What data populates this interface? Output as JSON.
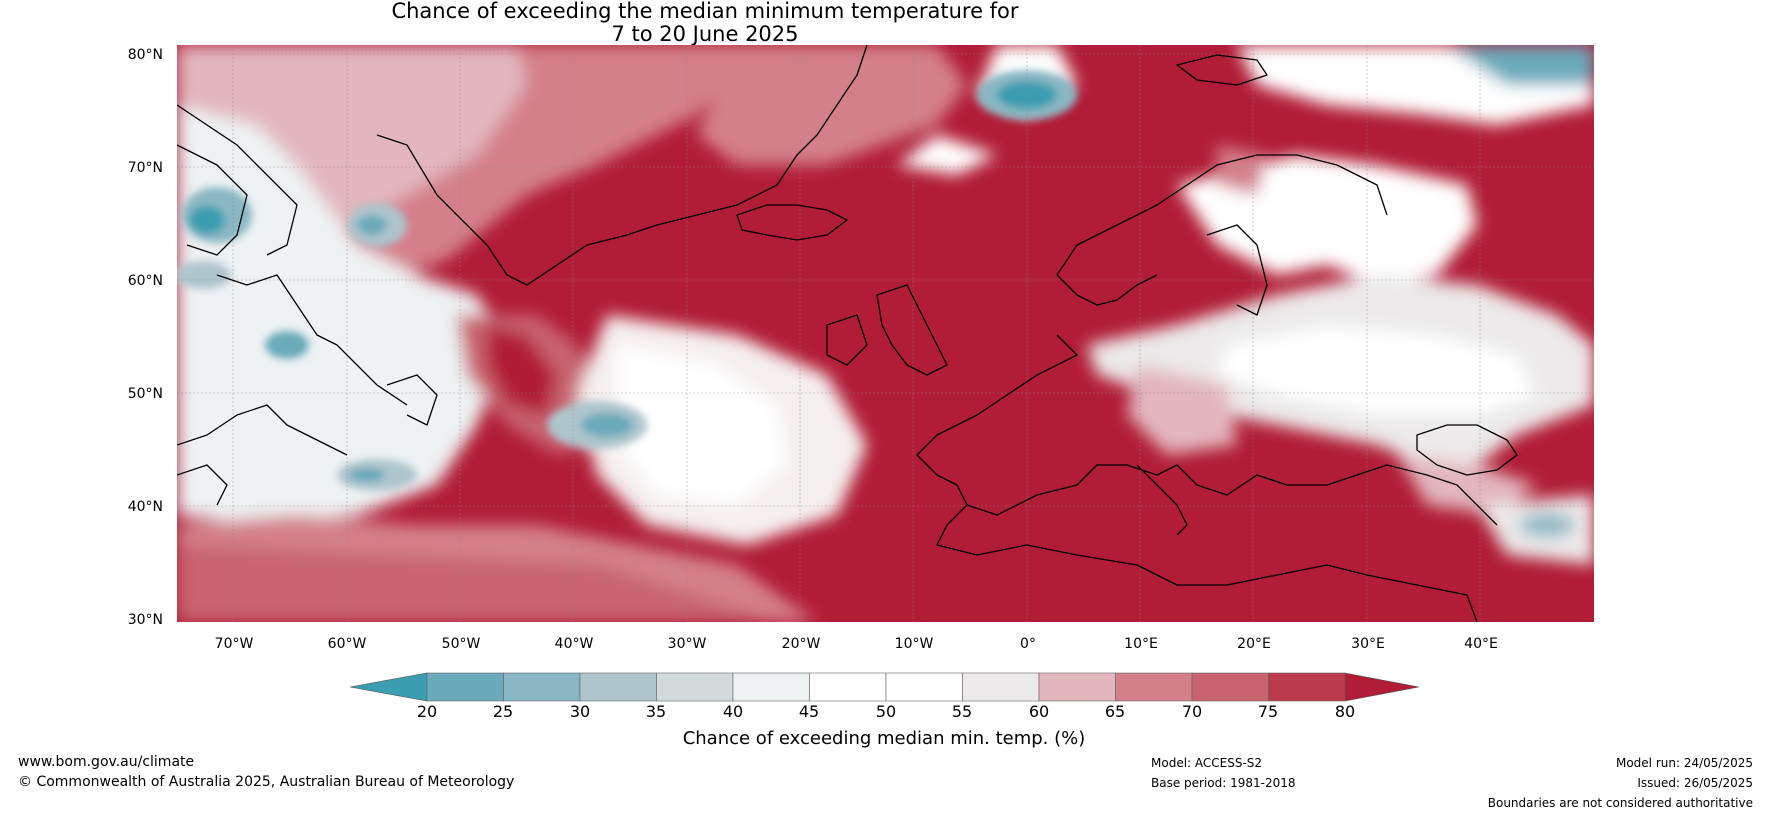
{
  "title": {
    "line1": "Chance of exceeding the median minimum temperature for",
    "line2": "7 to 20 June 2025"
  },
  "lat_labels": [
    "80°N",
    "70°N",
    "60°N",
    "50°N",
    "40°N",
    "30°N"
  ],
  "lon_labels": [
    "70°W",
    "60°W",
    "50°W",
    "40°W",
    "30°W",
    "20°W",
    "10°W",
    "0°",
    "10°E",
    "20°E",
    "30°E",
    "40°E"
  ],
  "colorbar": {
    "ticks": [
      "20",
      "25",
      "30",
      "35",
      "40",
      "45",
      "50",
      "55",
      "60",
      "65",
      "70",
      "75",
      "80"
    ],
    "colors": [
      "#3a9db0",
      "#6aaabb",
      "#89b7c3",
      "#aec5cc",
      "#d2dadc",
      "#eef2f3",
      "#ffffff",
      "#ffffff",
      "#eceaea",
      "#e2b6bc",
      "#d4808b",
      "#c8636f",
      "#bb3b4d",
      "#b11c36"
    ],
    "label": "Chance of exceeding median min. temp. (%)"
  },
  "footer": {
    "url": "www.bom.gov.au/climate",
    "copyright": "© Commonwealth of Australia 2025, Australian Bureau of Meteorology",
    "model": "Model: ACCESS-S2",
    "base_period": "Base period: 1981-2018",
    "model_run": "Model run: 24/05/2025",
    "issued": "Issued: 26/05/2025",
    "disclaimer": "Boundaries are not considered authoritative"
  }
}
